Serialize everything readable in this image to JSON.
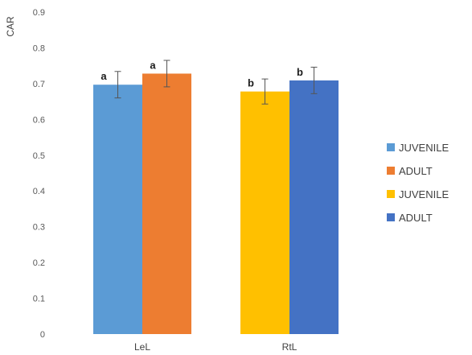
{
  "chart_data": {
    "type": "bar",
    "ylabel": "CAR",
    "ylim": [
      0,
      0.9
    ],
    "yticks": [
      "0",
      "0.1",
      "0.2",
      "0.3",
      "0.4",
      "0.5",
      "0.6",
      "0.7",
      "0.8",
      "0.9"
    ],
    "grid": false,
    "legend_position": "right",
    "categories": [
      "LeL",
      "RtL"
    ],
    "bars": [
      {
        "category": "LeL",
        "series": "JUVENILE",
        "value": 0.697,
        "error": 0.037,
        "label": "a",
        "color": "#5b9bd5"
      },
      {
        "category": "LeL",
        "series": "ADULT",
        "value": 0.728,
        "error": 0.037,
        "label": "a",
        "color": "#ed7d31"
      },
      {
        "category": "RtL",
        "series": "JUVENILE",
        "value": 0.678,
        "error": 0.035,
        "label": "b",
        "color": "#ffc000"
      },
      {
        "category": "RtL",
        "series": "ADULT",
        "value": 0.709,
        "error": 0.037,
        "label": "b",
        "color": "#4472c4"
      }
    ],
    "legend": [
      {
        "name": "JUVENILE",
        "color": "#5b9bd5"
      },
      {
        "name": "ADULT",
        "color": "#ed7d31"
      },
      {
        "name": "JUVENILE",
        "color": "#ffc000"
      },
      {
        "name": "ADULT",
        "color": "#4472c4"
      }
    ]
  }
}
